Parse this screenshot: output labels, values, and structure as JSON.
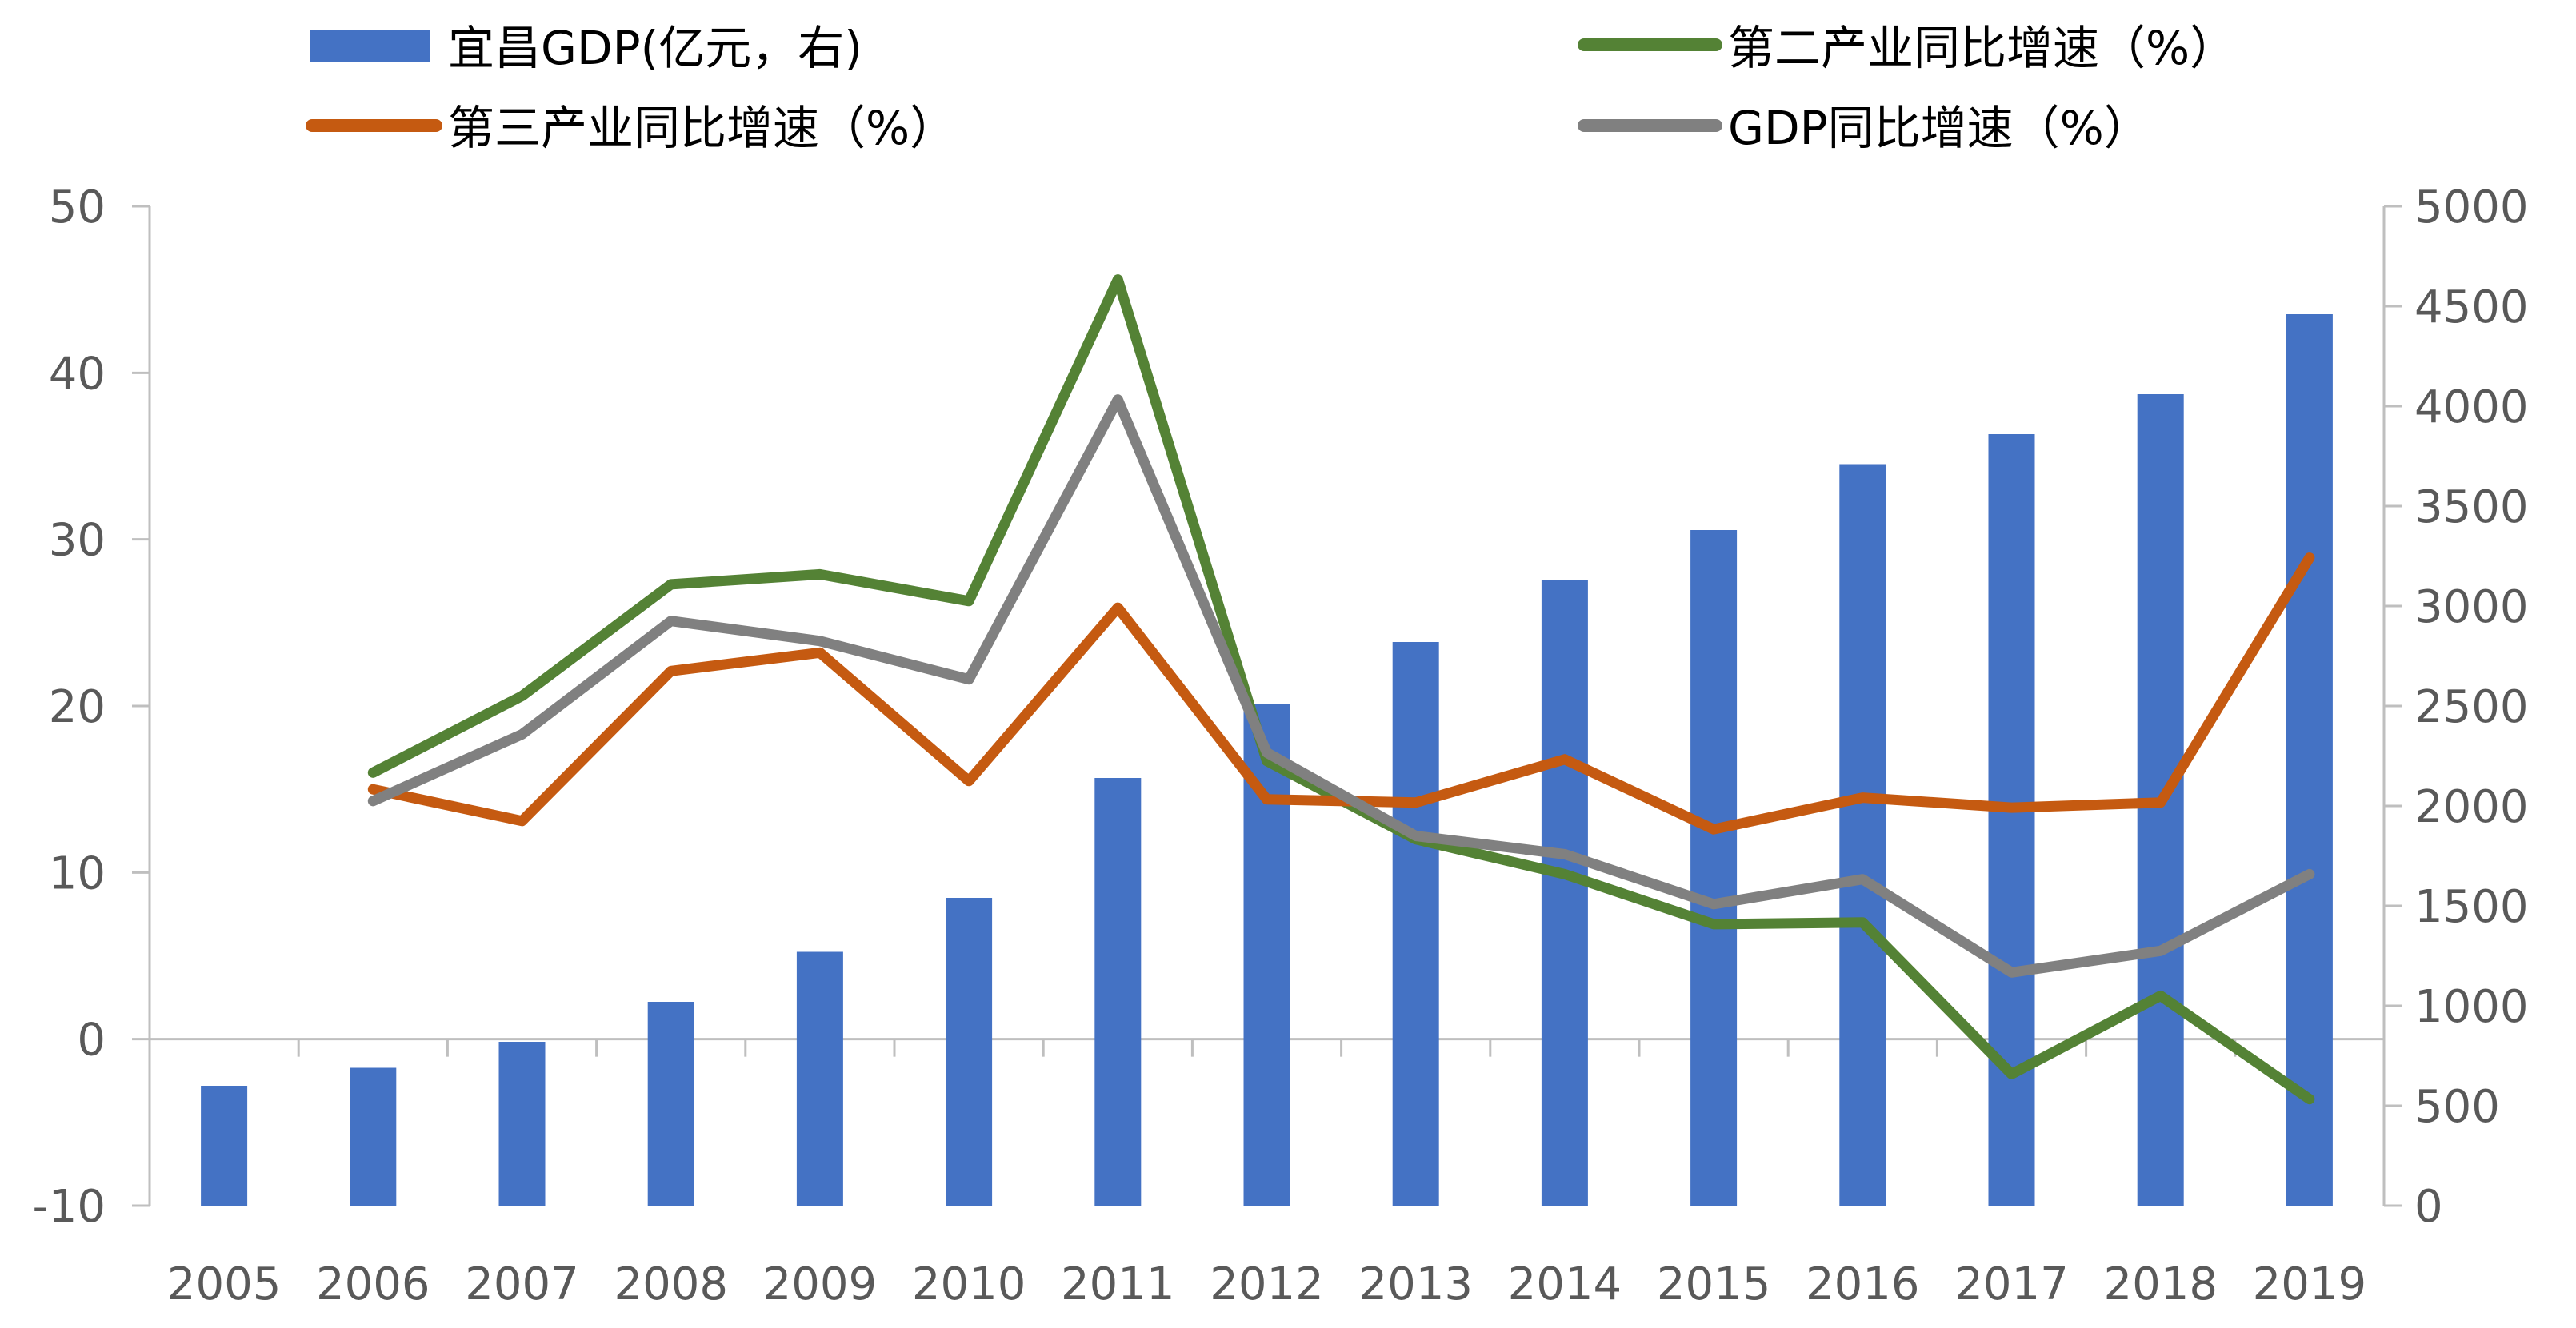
{
  "chart_data": {
    "type": "bar+line",
    "categories": [
      "2005",
      "2006",
      "2007",
      "2008",
      "2009",
      "2010",
      "2011",
      "2012",
      "2013",
      "2014",
      "2015",
      "2016",
      "2017",
      "2018",
      "2019"
    ],
    "bar_series": {
      "name": "宜昌GDP(亿元，右)",
      "axis": "right",
      "color": "#4472C4",
      "values": [
        600,
        690,
        820,
        1020,
        1270,
        1540,
        2140,
        2510,
        2820,
        3130,
        3380,
        3710,
        3860,
        4060,
        4460
      ]
    },
    "line_series": [
      {
        "name": "第二产业同比增速（%）",
        "axis": "left",
        "color": "#548235",
        "values": [
          null,
          16.0,
          20.6,
          27.3,
          27.9,
          26.3,
          45.6,
          16.7,
          12.0,
          9.9,
          6.9,
          7.0,
          -2.1,
          2.6,
          -3.6
        ]
      },
      {
        "name": "第三产业同比增速（%）",
        "axis": "left",
        "color": "#C55A11",
        "values": [
          null,
          15.0,
          13.1,
          22.1,
          23.2,
          15.5,
          25.9,
          14.4,
          14.2,
          16.8,
          12.6,
          14.5,
          13.9,
          14.2,
          28.9
        ]
      },
      {
        "name": "GDP同比增速（%）",
        "axis": "left",
        "color": "#808080",
        "values": [
          null,
          14.3,
          18.3,
          25.1,
          23.9,
          21.6,
          38.4,
          17.2,
          12.2,
          11.1,
          8.1,
          9.6,
          4.0,
          5.3,
          9.9
        ]
      }
    ],
    "y_left": {
      "min": -10,
      "max": 50,
      "ticks": [
        "-10",
        "0",
        "10",
        "20",
        "30",
        "40",
        "50"
      ]
    },
    "y_right": {
      "min": 0,
      "max": 5000,
      "ticks": [
        "0",
        "500",
        "1000",
        "1500",
        "2000",
        "2500",
        "3000",
        "3500",
        "4000",
        "4500",
        "5000"
      ]
    },
    "legend_position": "top",
    "grid": false
  }
}
